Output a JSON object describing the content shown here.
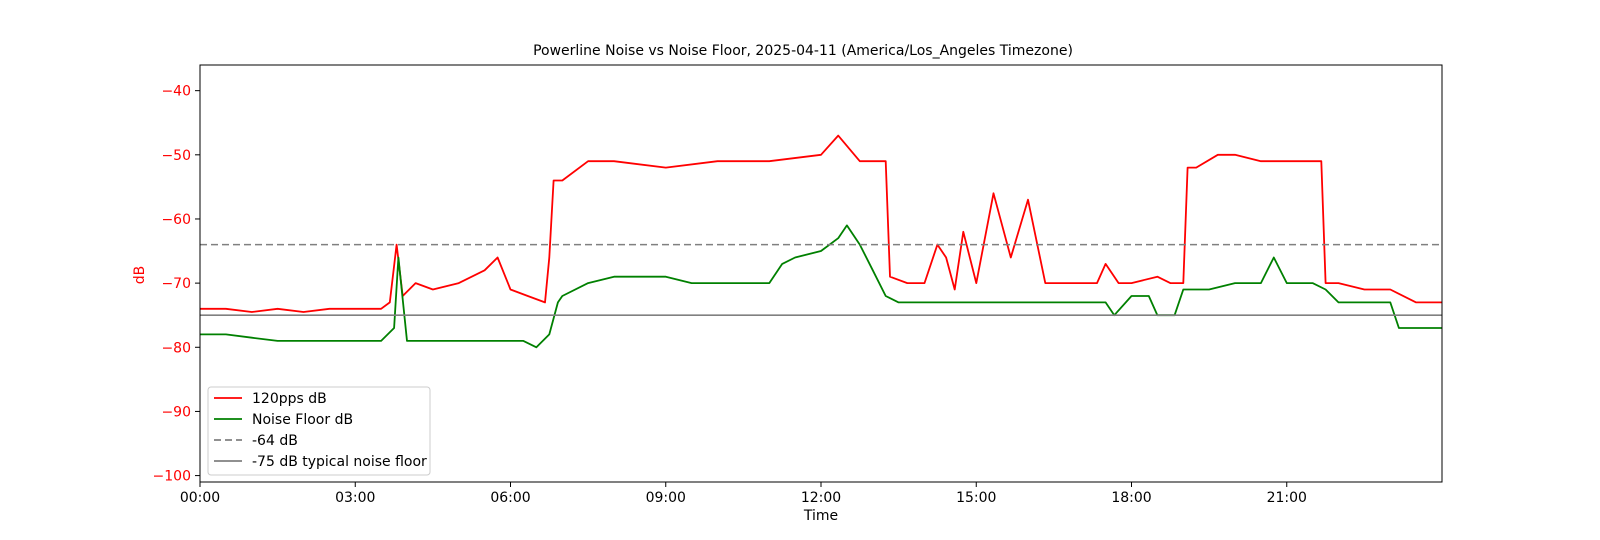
{
  "chart_data": {
    "type": "line",
    "title": "Powerline Noise vs Noise Floor, 2025-04-11 (America/Los_Angeles Timezone)",
    "xlabel": "Time",
    "ylabel": "dB",
    "xlim": [
      "00:00",
      "24:00"
    ],
    "ylim": [
      -101,
      -36
    ],
    "x_ticks": [
      "00:00",
      "03:00",
      "06:00",
      "09:00",
      "12:00",
      "15:00",
      "18:00",
      "21:00"
    ],
    "y_ticks": [
      -40,
      -50,
      -60,
      -70,
      -80,
      -90,
      -100
    ],
    "y_tick_labels": [
      "−40",
      "−50",
      "−60",
      "−70",
      "−80",
      "−90",
      "−100"
    ],
    "grid": false,
    "legend_position": "lower-left",
    "colors": {
      "pps": "#ff0000",
      "floor": "#008000",
      "ref64": "#808080",
      "ref75": "#808080",
      "yaxis_text": "#ff0000"
    },
    "series": [
      {
        "name": "120pps dB",
        "color": "#ff0000",
        "style": "solid",
        "x": [
          "00:00",
          "00:30",
          "01:00",
          "01:30",
          "02:00",
          "02:30",
          "03:00",
          "03:30",
          "03:40",
          "03:48",
          "03:55",
          "04:10",
          "04:30",
          "05:00",
          "05:30",
          "05:45",
          "06:00",
          "06:20",
          "06:40",
          "06:45",
          "06:50",
          "07:00",
          "07:30",
          "08:00",
          "09:00",
          "10:00",
          "11:00",
          "12:00",
          "12:20",
          "12:45",
          "13:15",
          "13:20",
          "13:40",
          "14:00",
          "14:15",
          "14:25",
          "14:35",
          "14:45",
          "15:00",
          "15:20",
          "15:40",
          "16:00",
          "16:20",
          "16:40",
          "17:00",
          "17:20",
          "17:30",
          "17:45",
          "18:00",
          "18:30",
          "18:45",
          "19:00",
          "19:05",
          "19:15",
          "19:40",
          "20:00",
          "20:30",
          "21:00",
          "21:30",
          "21:40",
          "21:45",
          "22:00",
          "22:30",
          "23:00",
          "23:30",
          "24:00"
        ],
        "y": [
          -74,
          -74,
          -74.5,
          -74,
          -74.5,
          -74,
          -74,
          -74,
          -73,
          -64,
          -72,
          -70,
          -71,
          -70,
          -68,
          -66,
          -71,
          -72,
          -73,
          -66,
          -54,
          -54,
          -51,
          -51,
          -52,
          -51,
          -51,
          -50,
          -47,
          -51,
          -51,
          -69,
          -70,
          -70,
          -64,
          -66,
          -71,
          -62,
          -70,
          -56,
          -66,
          -57,
          -70,
          -70,
          -70,
          -70,
          -67,
          -70,
          -70,
          -69,
          -70,
          -70,
          -52,
          -52,
          -50,
          -50,
          -51,
          -51,
          -51,
          -51,
          -70,
          -70,
          -71,
          -71,
          -73,
          -73
        ]
      },
      {
        "name": "Noise Floor dB",
        "color": "#008000",
        "style": "solid",
        "x": [
          "00:00",
          "00:30",
          "01:00",
          "01:30",
          "02:00",
          "02:30",
          "03:00",
          "03:30",
          "03:45",
          "03:50",
          "04:00",
          "04:30",
          "05:00",
          "05:30",
          "06:00",
          "06:15",
          "06:30",
          "06:45",
          "06:55",
          "07:00",
          "07:30",
          "08:00",
          "08:30",
          "09:00",
          "09:30",
          "10:00",
          "10:30",
          "11:00",
          "11:15",
          "11:30",
          "12:00",
          "12:20",
          "12:30",
          "12:45",
          "13:00",
          "13:15",
          "13:30",
          "14:00",
          "14:30",
          "15:00",
          "15:30",
          "16:00",
          "16:30",
          "17:00",
          "17:30",
          "17:40",
          "18:00",
          "18:20",
          "18:30",
          "18:50",
          "19:00",
          "19:30",
          "20:00",
          "20:30",
          "20:45",
          "21:00",
          "21:30",
          "21:45",
          "22:00",
          "22:30",
          "23:00",
          "23:10",
          "23:30",
          "24:00"
        ],
        "y": [
          -78,
          -78,
          -78.5,
          -79,
          -79,
          -79,
          -79,
          -79,
          -77,
          -66,
          -79,
          -79,
          -79,
          -79,
          -79,
          -79,
          -80,
          -78,
          -73,
          -72,
          -70,
          -69,
          -69,
          -69,
          -70,
          -70,
          -70,
          -70,
          -67,
          -66,
          -65,
          -63,
          -61,
          -64,
          -68,
          -72,
          -73,
          -73,
          -73,
          -73,
          -73,
          -73,
          -73,
          -73,
          -73,
          -75,
          -72,
          -72,
          -75,
          -75,
          -71,
          -71,
          -70,
          -70,
          -66,
          -70,
          -70,
          -71,
          -73,
          -73,
          -73,
          -77,
          -77,
          -77
        ]
      },
      {
        "name": "-64 dB",
        "color": "#808080",
        "style": "dashed",
        "y": -64
      },
      {
        "name": "-75 dB typical noise floor",
        "color": "#808080",
        "style": "solid",
        "y": -75
      }
    ]
  }
}
